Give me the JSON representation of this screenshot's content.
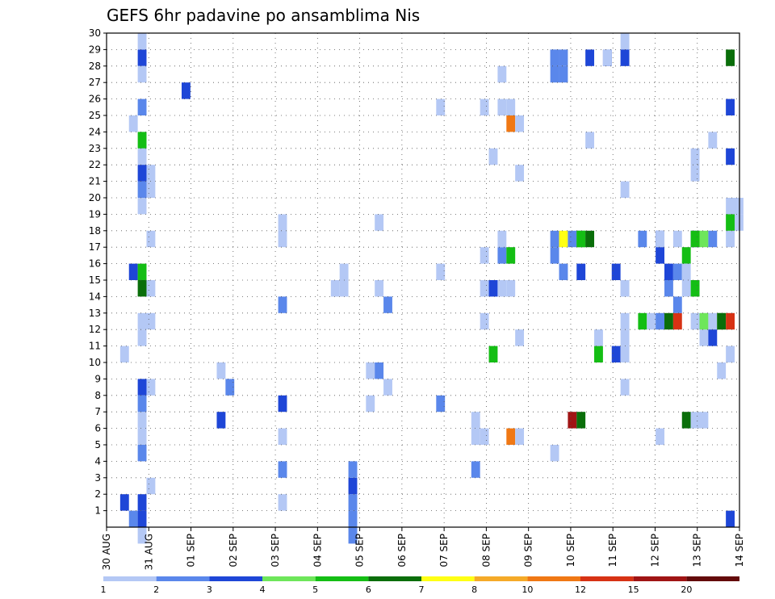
{
  "chart_data": {
    "type": "heatmap",
    "title": "GEFS 6hr padavine po ansamblima Nis",
    "xlabel": "",
    "ylabel": "",
    "x_tick_labels": [
      "30 AUG",
      "31 AUG",
      "01 SEP",
      "02 SEP",
      "03 SEP",
      "04 SEP",
      "05 SEP",
      "06 SEP",
      "07 SEP",
      "08 SEP",
      "09 SEP",
      "10 SEP",
      "11 SEP",
      "12 SEP",
      "13 SEP",
      "14 SEP"
    ],
    "x_steps_per_label": 4,
    "x_steps_total": 61,
    "y_tick_labels": [
      "1",
      "2",
      "3",
      "4",
      "5",
      "6",
      "7",
      "8",
      "9",
      "10",
      "11",
      "12",
      "13",
      "14",
      "15",
      "16",
      "17",
      "18",
      "19",
      "20",
      "21",
      "22",
      "23",
      "24",
      "25",
      "26",
      "27",
      "28",
      "29",
      "30"
    ],
    "ylim": [
      0,
      30
    ],
    "grid": true,
    "colorbar": {
      "levels": [
        "1",
        "2",
        "3",
        "4",
        "5",
        "6",
        "7",
        "8",
        "10",
        "12",
        "15",
        "20"
      ],
      "colors": [
        "#b4c8f5",
        "#5a87eb",
        "#1e46d7",
        "#6ee65a",
        "#14be14",
        "#0a6e0a",
        "#ffff14",
        "#f5aa28",
        "#f07814",
        "#d73214",
        "#a01414",
        "#640a0a"
      ]
    },
    "cells": [
      [
        1,
        1,
        3
      ],
      [
        1,
        10,
        1
      ],
      [
        2,
        0,
        2
      ],
      [
        2,
        15,
        3
      ],
      [
        2,
        24,
        1
      ],
      [
        3,
        5,
        1
      ],
      [
        3,
        6,
        1
      ],
      [
        3,
        11,
        1
      ],
      [
        3,
        22,
        1
      ],
      [
        3,
        23,
        5
      ],
      [
        3,
        28,
        3
      ],
      [
        3,
        27,
        1
      ],
      [
        3,
        15,
        5
      ],
      [
        3,
        8,
        3
      ],
      [
        3,
        -1,
        1
      ],
      [
        3,
        19,
        1
      ],
      [
        3,
        20,
        2
      ],
      [
        3,
        21,
        3
      ],
      [
        3,
        7,
        2
      ],
      [
        3,
        4,
        2
      ],
      [
        3,
        14,
        6
      ],
      [
        3,
        25,
        2
      ],
      [
        3,
        29,
        1
      ],
      [
        3,
        12,
        1
      ],
      [
        3,
        1,
        3
      ],
      [
        3,
        0,
        3
      ],
      [
        4,
        2,
        1
      ],
      [
        4,
        21,
        1
      ],
      [
        4,
        20,
        1
      ],
      [
        4,
        8,
        1
      ],
      [
        4,
        12,
        1
      ],
      [
        4,
        14,
        1
      ],
      [
        4,
        17,
        1
      ],
      [
        8,
        26,
        3
      ],
      [
        12,
        9,
        1
      ],
      [
        12,
        6,
        3
      ],
      [
        13,
        8,
        2
      ],
      [
        19,
        1,
        1
      ],
      [
        19,
        5,
        1
      ],
      [
        19,
        3,
        2
      ],
      [
        19,
        7,
        3
      ],
      [
        19,
        17,
        1
      ],
      [
        19,
        18,
        1
      ],
      [
        19,
        13,
        2
      ],
      [
        25,
        14,
        1
      ],
      [
        26,
        15,
        1
      ],
      [
        26,
        14,
        1
      ],
      [
        27,
        -1,
        2
      ],
      [
        27,
        0,
        2
      ],
      [
        27,
        1,
        2
      ],
      [
        27,
        2,
        3
      ],
      [
        27,
        3,
        2
      ],
      [
        29,
        9,
        1
      ],
      [
        29,
        7,
        1
      ],
      [
        30,
        18,
        1
      ],
      [
        30,
        14,
        1
      ],
      [
        30,
        9,
        2
      ],
      [
        31,
        13,
        2
      ],
      [
        31,
        8,
        1
      ],
      [
        37,
        15,
        1
      ],
      [
        37,
        7,
        2
      ],
      [
        37,
        25,
        1
      ],
      [
        41,
        5,
        1
      ],
      [
        41,
        6,
        1
      ],
      [
        41,
        3,
        2
      ],
      [
        42,
        5,
        1
      ],
      [
        42,
        16,
        1
      ],
      [
        42,
        12,
        1
      ],
      [
        42,
        14,
        1
      ],
      [
        42,
        25,
        1
      ],
      [
        43,
        10,
        5
      ],
      [
        43,
        14,
        3
      ],
      [
        43,
        22,
        1
      ],
      [
        44,
        27,
        1
      ],
      [
        44,
        25,
        1
      ],
      [
        44,
        16,
        2
      ],
      [
        44,
        14,
        1
      ],
      [
        44,
        17,
        1
      ],
      [
        45,
        14,
        1
      ],
      [
        45,
        5,
        9
      ],
      [
        45,
        16,
        5
      ],
      [
        45,
        24,
        9
      ],
      [
        45,
        25,
        1
      ],
      [
        46,
        24,
        1
      ],
      [
        46,
        21,
        1
      ],
      [
        46,
        5,
        1
      ],
      [
        46,
        11,
        1
      ],
      [
        50,
        4,
        1
      ],
      [
        50,
        28,
        2
      ],
      [
        50,
        27,
        2
      ],
      [
        50,
        28,
        2
      ],
      [
        50,
        17,
        2
      ],
      [
        50,
        16,
        2
      ],
      [
        51,
        27,
        2
      ],
      [
        51,
        28,
        2
      ],
      [
        51,
        15,
        2
      ],
      [
        51,
        17,
        7
      ],
      [
        52,
        17,
        2
      ],
      [
        52,
        6,
        11
      ],
      [
        53,
        6,
        6
      ],
      [
        53,
        17,
        5
      ],
      [
        53,
        15,
        3
      ],
      [
        53,
        17,
        5
      ],
      [
        54,
        17,
        6
      ],
      [
        54,
        23,
        1
      ],
      [
        54,
        28,
        3
      ],
      [
        55,
        10,
        5
      ],
      [
        55,
        11,
        1
      ],
      [
        56,
        28,
        3
      ],
      [
        56,
        28,
        1
      ],
      [
        57,
        15,
        3
      ],
      [
        57,
        10,
        3
      ],
      [
        58,
        28,
        1
      ],
      [
        58,
        29,
        1
      ],
      [
        58,
        28,
        3
      ],
      [
        58,
        14,
        1
      ],
      [
        58,
        12,
        1
      ],
      [
        58,
        20,
        1
      ],
      [
        58,
        8,
        1
      ],
      [
        58,
        10,
        1
      ],
      [
        58,
        11,
        1
      ],
      [
        58,
        14,
        1
      ],
      [
        60,
        17,
        2
      ],
      [
        60,
        12,
        5
      ],
      [
        61,
        12,
        1
      ],
      [
        62,
        12,
        2
      ],
      [
        62,
        17,
        3
      ],
      [
        62,
        16,
        3
      ],
      [
        62,
        17,
        1
      ],
      [
        62,
        5,
        1
      ],
      [
        63,
        12,
        6
      ],
      [
        63,
        14,
        2
      ],
      [
        63,
        15,
        3
      ],
      [
        64,
        12,
        10
      ],
      [
        64,
        13,
        2
      ],
      [
        64,
        15,
        2
      ],
      [
        64,
        17,
        1
      ],
      [
        65,
        16,
        5
      ],
      [
        65,
        15,
        1
      ],
      [
        65,
        14,
        1
      ],
      [
        65,
        6,
        6
      ],
      [
        66,
        6,
        1
      ],
      [
        66,
        14,
        5
      ],
      [
        66,
        17,
        3
      ],
      [
        66,
        17,
        5
      ],
      [
        66,
        12,
        1
      ],
      [
        66,
        22,
        1
      ],
      [
        66,
        21,
        1
      ],
      [
        67,
        12,
        1
      ],
      [
        67,
        11,
        1
      ],
      [
        67,
        17,
        4
      ],
      [
        67,
        12,
        4
      ],
      [
        67,
        6,
        1
      ],
      [
        68,
        12,
        1
      ],
      [
        68,
        17,
        2
      ],
      [
        68,
        11,
        3
      ],
      [
        68,
        23,
        1
      ],
      [
        69,
        12,
        4
      ],
      [
        69,
        9,
        1
      ],
      [
        69,
        12,
        6
      ],
      [
        70,
        12,
        10
      ],
      [
        70,
        17,
        1
      ],
      [
        70,
        22,
        3
      ],
      [
        70,
        25,
        3
      ],
      [
        70,
        19,
        1
      ],
      [
        70,
        18,
        5
      ],
      [
        70,
        28,
        6
      ],
      [
        70,
        0,
        3
      ],
      [
        70,
        10,
        1
      ],
      [
        71,
        19,
        1
      ],
      [
        71,
        18,
        1
      ]
    ]
  }
}
